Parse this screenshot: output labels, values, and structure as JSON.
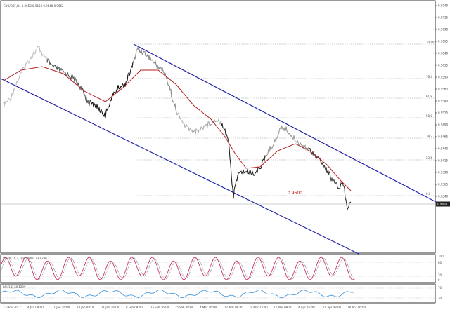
{
  "window": {
    "title": "EUR/CHF,H4 0.9650 0.9653 0.9648 0.9652"
  },
  "colors": {
    "background": "#ffffff",
    "price_line": "#111111",
    "moving_average": "#b22222",
    "channel": "#1e22a8",
    "fib_levels": "#9a9a9a",
    "rsi_line": "#3a8fd6",
    "stoch_main": "#cc3366",
    "stoch_signal": "#8888aa"
  },
  "annotation": {
    "text": "0.9600"
  },
  "current_price": "0.9604",
  "price_axis": {
    "ticks": [
      "0.9740",
      "0.9715",
      "0.9690",
      "0.9665",
      "0.9640",
      "0.9615",
      "0.9590",
      "0.9565",
      "0.9540",
      "0.9515",
      "0.9490",
      "0.9465",
      "0.9440",
      "0.9415",
      "0.9390",
      "0.9365",
      "0.9340"
    ]
  },
  "fib_labels": [
    "100.0",
    "76.4",
    "61.8",
    "50.0",
    "38.2",
    "23.6",
    "0.0"
  ],
  "time_axis": {
    "labels": [
      "23 Nov 2012",
      "4 Jan 08:00",
      "11 Jan 16:00",
      "24 Jan 08:00",
      "31 Jan 16:00",
      "8 Feb 08:00",
      "15 Feb 16:00",
      "25 Feb 08:00",
      "4 Mar 16:00",
      "12 Mar 08:00",
      "19 Mar 16:00",
      "27 Mar 08:00",
      "4 Apr 16:00",
      "11 Apr 08:00",
      "18 Apr 16:00"
    ]
  },
  "stochastic": {
    "label": "Stoch(14,3,3) 80.0000 73.9286",
    "levels": [
      "100",
      "80",
      "20",
      "0"
    ]
  },
  "rsi": {
    "label": "RSI(14) 38.1209",
    "levels": [
      "70",
      "30"
    ]
  }
}
